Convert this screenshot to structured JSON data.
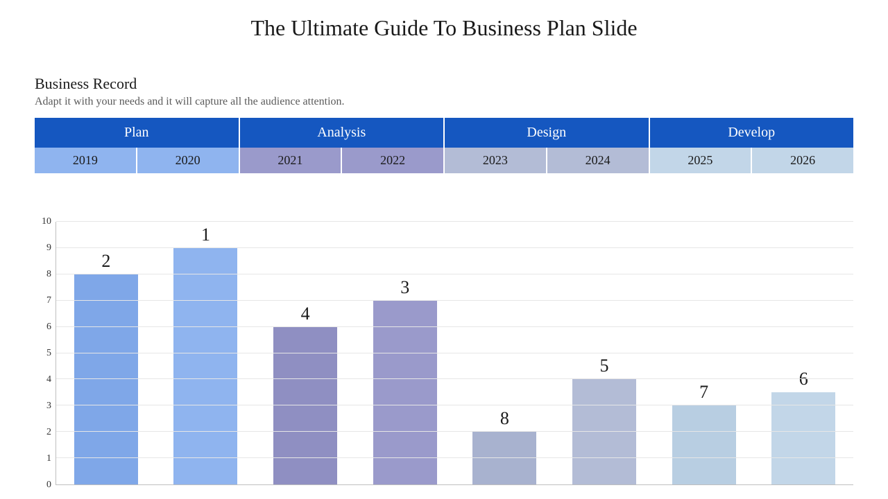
{
  "title": "The Ultimate Guide To Business Plan Slide",
  "subtitle": "Business Record",
  "subdesc": "Adapt it with your needs and it will capture all the audience attention.",
  "phase_header_bg": "#1557c0",
  "phase_header_color": "#ffffff",
  "phases": [
    {
      "label": "Plan",
      "year_bg": "#8fb4ef"
    },
    {
      "label": "Analysis",
      "year_bg": "#9a9acb"
    },
    {
      "label": "Design",
      "year_bg": "#b3bcd6"
    },
    {
      "label": "Develop",
      "year_bg": "#c2d6e8"
    }
  ],
  "years": [
    "2019",
    "2020",
    "2021",
    "2022",
    "2023",
    "2024",
    "2025",
    "2026"
  ],
  "chart": {
    "type": "bar",
    "ylim": [
      0,
      10
    ],
    "ytick_step": 1,
    "grid_color": "#e6e6e6",
    "axis_color": "#bfbfbf",
    "background": "#ffffff",
    "bar_width_ratio": 0.64,
    "label_fontsize": 26,
    "tick_fontsize": 14,
    "bars": [
      {
        "value": 8.0,
        "label": "2",
        "color": "#7fa7e8"
      },
      {
        "value": 9.0,
        "label": "1",
        "color": "#8fb4ef"
      },
      {
        "value": 6.0,
        "label": "4",
        "color": "#8f8fc2"
      },
      {
        "value": 7.0,
        "label": "3",
        "color": "#9a9acb"
      },
      {
        "value": 2.0,
        "label": "8",
        "color": "#a8b2cf"
      },
      {
        "value": 4.0,
        "label": "5",
        "color": "#b3bcd6"
      },
      {
        "value": 3.0,
        "label": "7",
        "color": "#b8cee2"
      },
      {
        "value": 3.5,
        "label": "6",
        "color": "#c2d6e8"
      }
    ]
  }
}
